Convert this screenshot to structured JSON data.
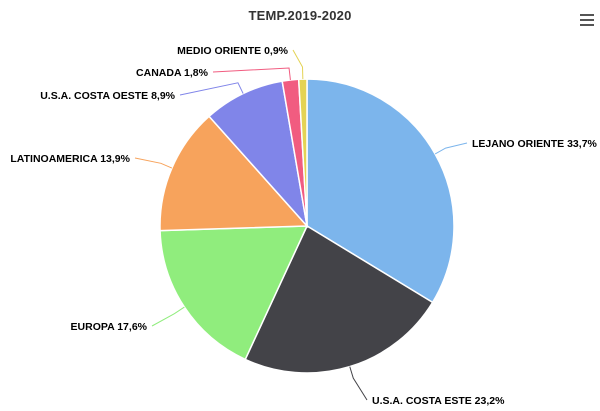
{
  "chart_data": {
    "type": "pie",
    "title": "TEMP.2019-2020",
    "slices": [
      {
        "label": "LEJANO ORIENTE",
        "value": 33.7,
        "value_label": "33,7%",
        "color": "#7cb5ec"
      },
      {
        "label": "U.S.A. COSTA ESTE",
        "value": 23.2,
        "value_label": "23,2%",
        "color": "#434348"
      },
      {
        "label": "EUROPA",
        "value": 17.6,
        "value_label": "17,6%",
        "color": "#90ed7d"
      },
      {
        "label": "LATINOAMERICA",
        "value": 13.9,
        "value_label": "13,9%",
        "color": "#f7a35c"
      },
      {
        "label": "U.S.A. COSTA OESTE",
        "value": 8.9,
        "value_label": "8,9%",
        "color": "#8085e9"
      },
      {
        "label": "CANADA",
        "value": 1.8,
        "value_label": "1,8%",
        "color": "#f15c80"
      },
      {
        "label": "MEDIO ORIENTE",
        "value": 0.9,
        "value_label": "0,9%",
        "color": "#e4d354"
      }
    ]
  },
  "toolbar": {
    "menu_icon": "hamburger-menu-icon"
  }
}
